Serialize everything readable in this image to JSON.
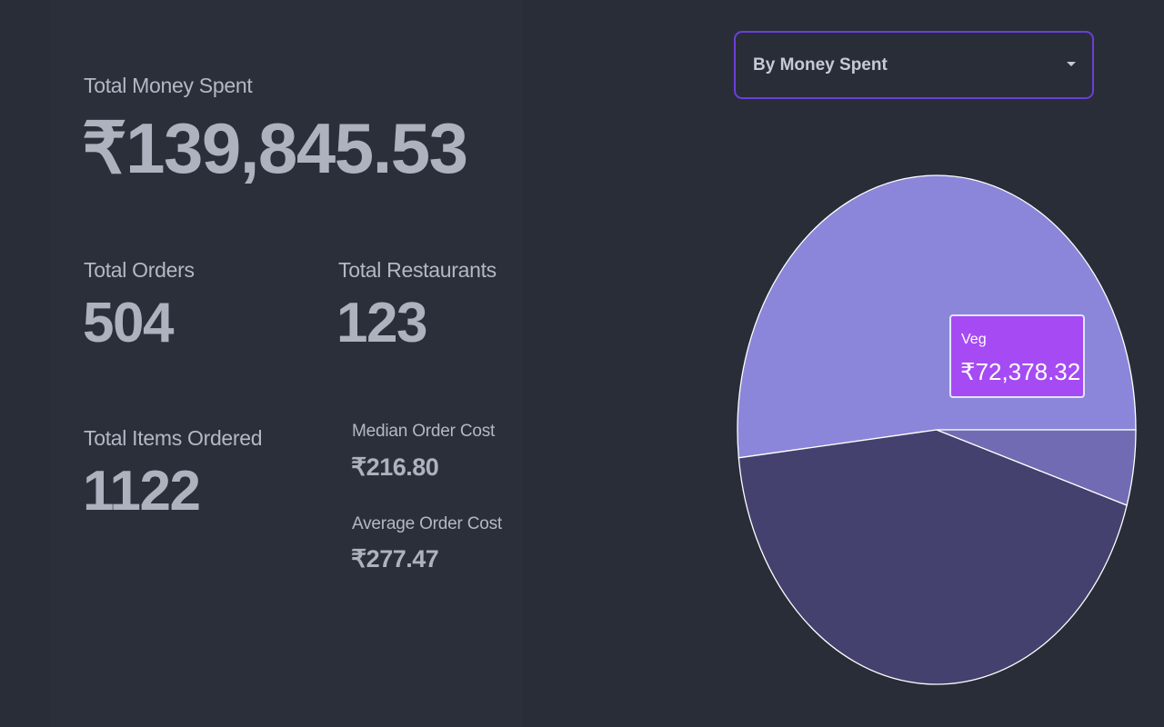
{
  "stats": {
    "total_money": {
      "label": "Total Money Spent",
      "value": "₹139,845.53"
    },
    "total_orders": {
      "label": "Total Orders",
      "value": "504"
    },
    "total_restaurants": {
      "label": "Total Restaurants",
      "value": "123"
    },
    "total_items": {
      "label": "Total Items Ordered",
      "value": "1122"
    },
    "median_order": {
      "label": "Median Order Cost",
      "value": "₹216.80"
    },
    "average_order": {
      "label": "Average Order Cost",
      "value": "₹277.47"
    }
  },
  "dropdown": {
    "selected": "By Money Spent"
  },
  "chart_data": {
    "type": "pie",
    "categories": [
      "Veg",
      null,
      null
    ],
    "values": [
      72378.32,
      60767,
      6700
    ],
    "value_labels": [
      "₹72,378.32",
      null,
      null
    ],
    "colors": [
      "#8b86d9",
      "#44416e",
      "#716bb4"
    ]
  }
}
